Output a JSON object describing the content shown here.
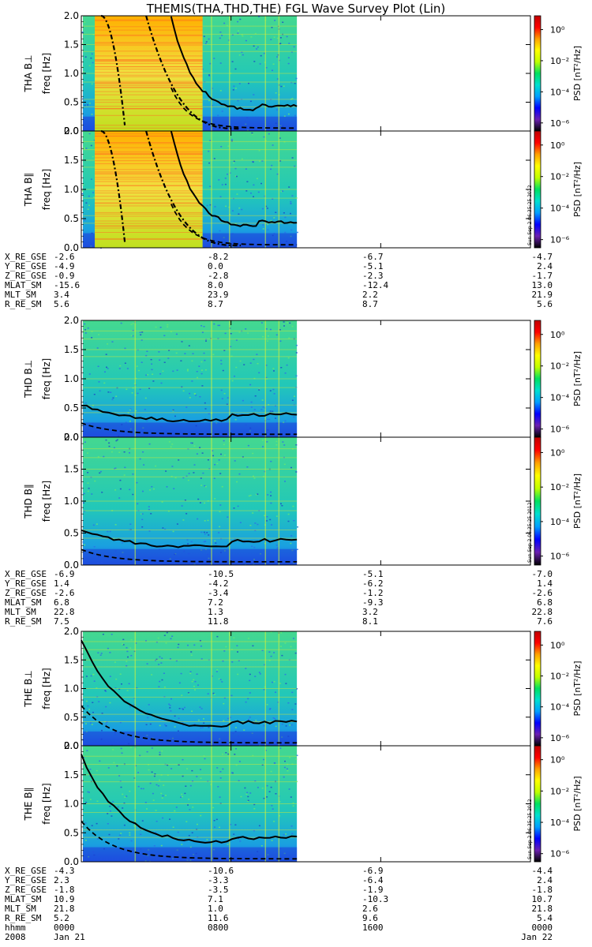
{
  "chart_data": {
    "type": "heatmap",
    "title": "THEMIS(THA,THD,THE) FGL Wave Survey Plot (Lin)",
    "ylim": [
      0,
      2.0
    ],
    "yticks": [
      "0.0",
      "0.5",
      "1.0",
      "1.5",
      "2.0"
    ],
    "ylabel": "freq [Hz]",
    "colorbar": {
      "label": "PSD [nT²/Hz]",
      "ticks": [
        "10⁰",
        "10⁻²",
        "10⁻⁴",
        "10⁻⁶"
      ],
      "colors": [
        "#000000",
        "#6b1fb1",
        "#0000ff",
        "#00a0ff",
        "#00e0d0",
        "#00e060",
        "#c0ff00",
        "#ffff00",
        "#ffa000",
        "#ff0000",
        "#c00000"
      ]
    },
    "stamp": "Sun Sep  2 06:35:25 2012",
    "panels": [
      {
        "id": "tha-bperp",
        "probe": "THA",
        "label": "THA B⊥",
        "data_end_frac": 0.48,
        "hot": [
          0.03,
          0.27
        ],
        "gyro_start": 2.0,
        "gyro_end": 0.45
      },
      {
        "id": "tha-bpar",
        "probe": "THA",
        "label": "THA B∥",
        "data_end_frac": 0.48,
        "hot": [
          0.03,
          0.27
        ],
        "gyro_start": 2.0,
        "gyro_end": 0.45
      },
      {
        "id": "thd-bperp",
        "probe": "THD",
        "label": "THD B⊥",
        "data_end_frac": 0.48,
        "hot": null,
        "gyro_start": 0.55,
        "gyro_end": 0.4
      },
      {
        "id": "thd-bpar",
        "probe": "THD",
        "label": "THD B∥",
        "data_end_frac": 0.48,
        "hot": null,
        "gyro_start": 0.55,
        "gyro_end": 0.4
      },
      {
        "id": "the-bperp",
        "probe": "THE",
        "label": "THE B⊥",
        "data_end_frac": 0.48,
        "hot": null,
        "gyro_start": 1.85,
        "gyro_end": 0.42
      },
      {
        "id": "the-bpar",
        "probe": "THE",
        "label": "THE B∥",
        "data_end_frac": 0.48,
        "hot": null,
        "gyro_start": 1.85,
        "gyro_end": 0.42
      }
    ],
    "ephemeris": [
      {
        "rows": [
          {
            "label": "X_RE_GSE",
            "values": [
              "-2.6",
              "-8.2",
              "-6.7",
              "-4.7"
            ]
          },
          {
            "label": "Y_RE_GSE",
            "values": [
              "-4.9",
              "0.0",
              "-5.1",
              "2.4"
            ]
          },
          {
            "label": "Z_RE_GSE",
            "values": [
              "-0.9",
              "-2.8",
              "-2.3",
              "-1.7"
            ]
          },
          {
            "label": "MLAT_SM",
            "values": [
              "-15.6",
              "8.0",
              "-12.4",
              "13.0"
            ]
          },
          {
            "label": "MLT_SM",
            "values": [
              "3.4",
              "23.9",
              "2.2",
              "21.9"
            ]
          },
          {
            "label": "R_RE_SM",
            "values": [
              "5.6",
              "8.7",
              "8.7",
              "5.6"
            ]
          }
        ]
      },
      {
        "rows": [
          {
            "label": "X_RE_GSE",
            "values": [
              "-6.9",
              "-10.5",
              "-5.1",
              "-7.0"
            ]
          },
          {
            "label": "Y_RE_GSE",
            "values": [
              "1.4",
              "-4.2",
              "-6.2",
              "1.4"
            ]
          },
          {
            "label": "Z_RE_GSE",
            "values": [
              "-2.6",
              "-3.4",
              "-1.2",
              "-2.6"
            ]
          },
          {
            "label": "MLAT_SM",
            "values": [
              "6.8",
              "7.2",
              "-9.3",
              "6.8"
            ]
          },
          {
            "label": "MLT_SM",
            "values": [
              "22.8",
              "1.3",
              "3.2",
              "22.8"
            ]
          },
          {
            "label": "R_RE_SM",
            "values": [
              "7.5",
              "11.8",
              "8.1",
              "7.6"
            ]
          }
        ]
      },
      {
        "rows": [
          {
            "label": "X_RE_GSE",
            "values": [
              "-4.3",
              "-10.6",
              "-6.9",
              "-4.4"
            ]
          },
          {
            "label": "Y_RE_GSE",
            "values": [
              "2.3",
              "-3.3",
              "-6.4",
              "2.4"
            ]
          },
          {
            "label": "Z_RE_GSE",
            "values": [
              "-1.8",
              "-3.5",
              "-1.9",
              "-1.8"
            ]
          },
          {
            "label": "MLAT_SM",
            "values": [
              "10.9",
              "7.1",
              "-10.3",
              "10.7"
            ]
          },
          {
            "label": "MLT_SM",
            "values": [
              "21.8",
              "1.0",
              "2.6",
              "21.8"
            ]
          },
          {
            "label": "R_RE_SM",
            "values": [
              "5.2",
              "11.6",
              "9.6",
              "5.4"
            ]
          },
          {
            "label": "hhmm",
            "values": [
              "0000",
              "0800",
              "1600",
              "0000"
            ]
          },
          {
            "label": "2008",
            "values": [
              "Jan 21",
              "",
              "",
              "Jan 22"
            ]
          }
        ]
      }
    ]
  }
}
